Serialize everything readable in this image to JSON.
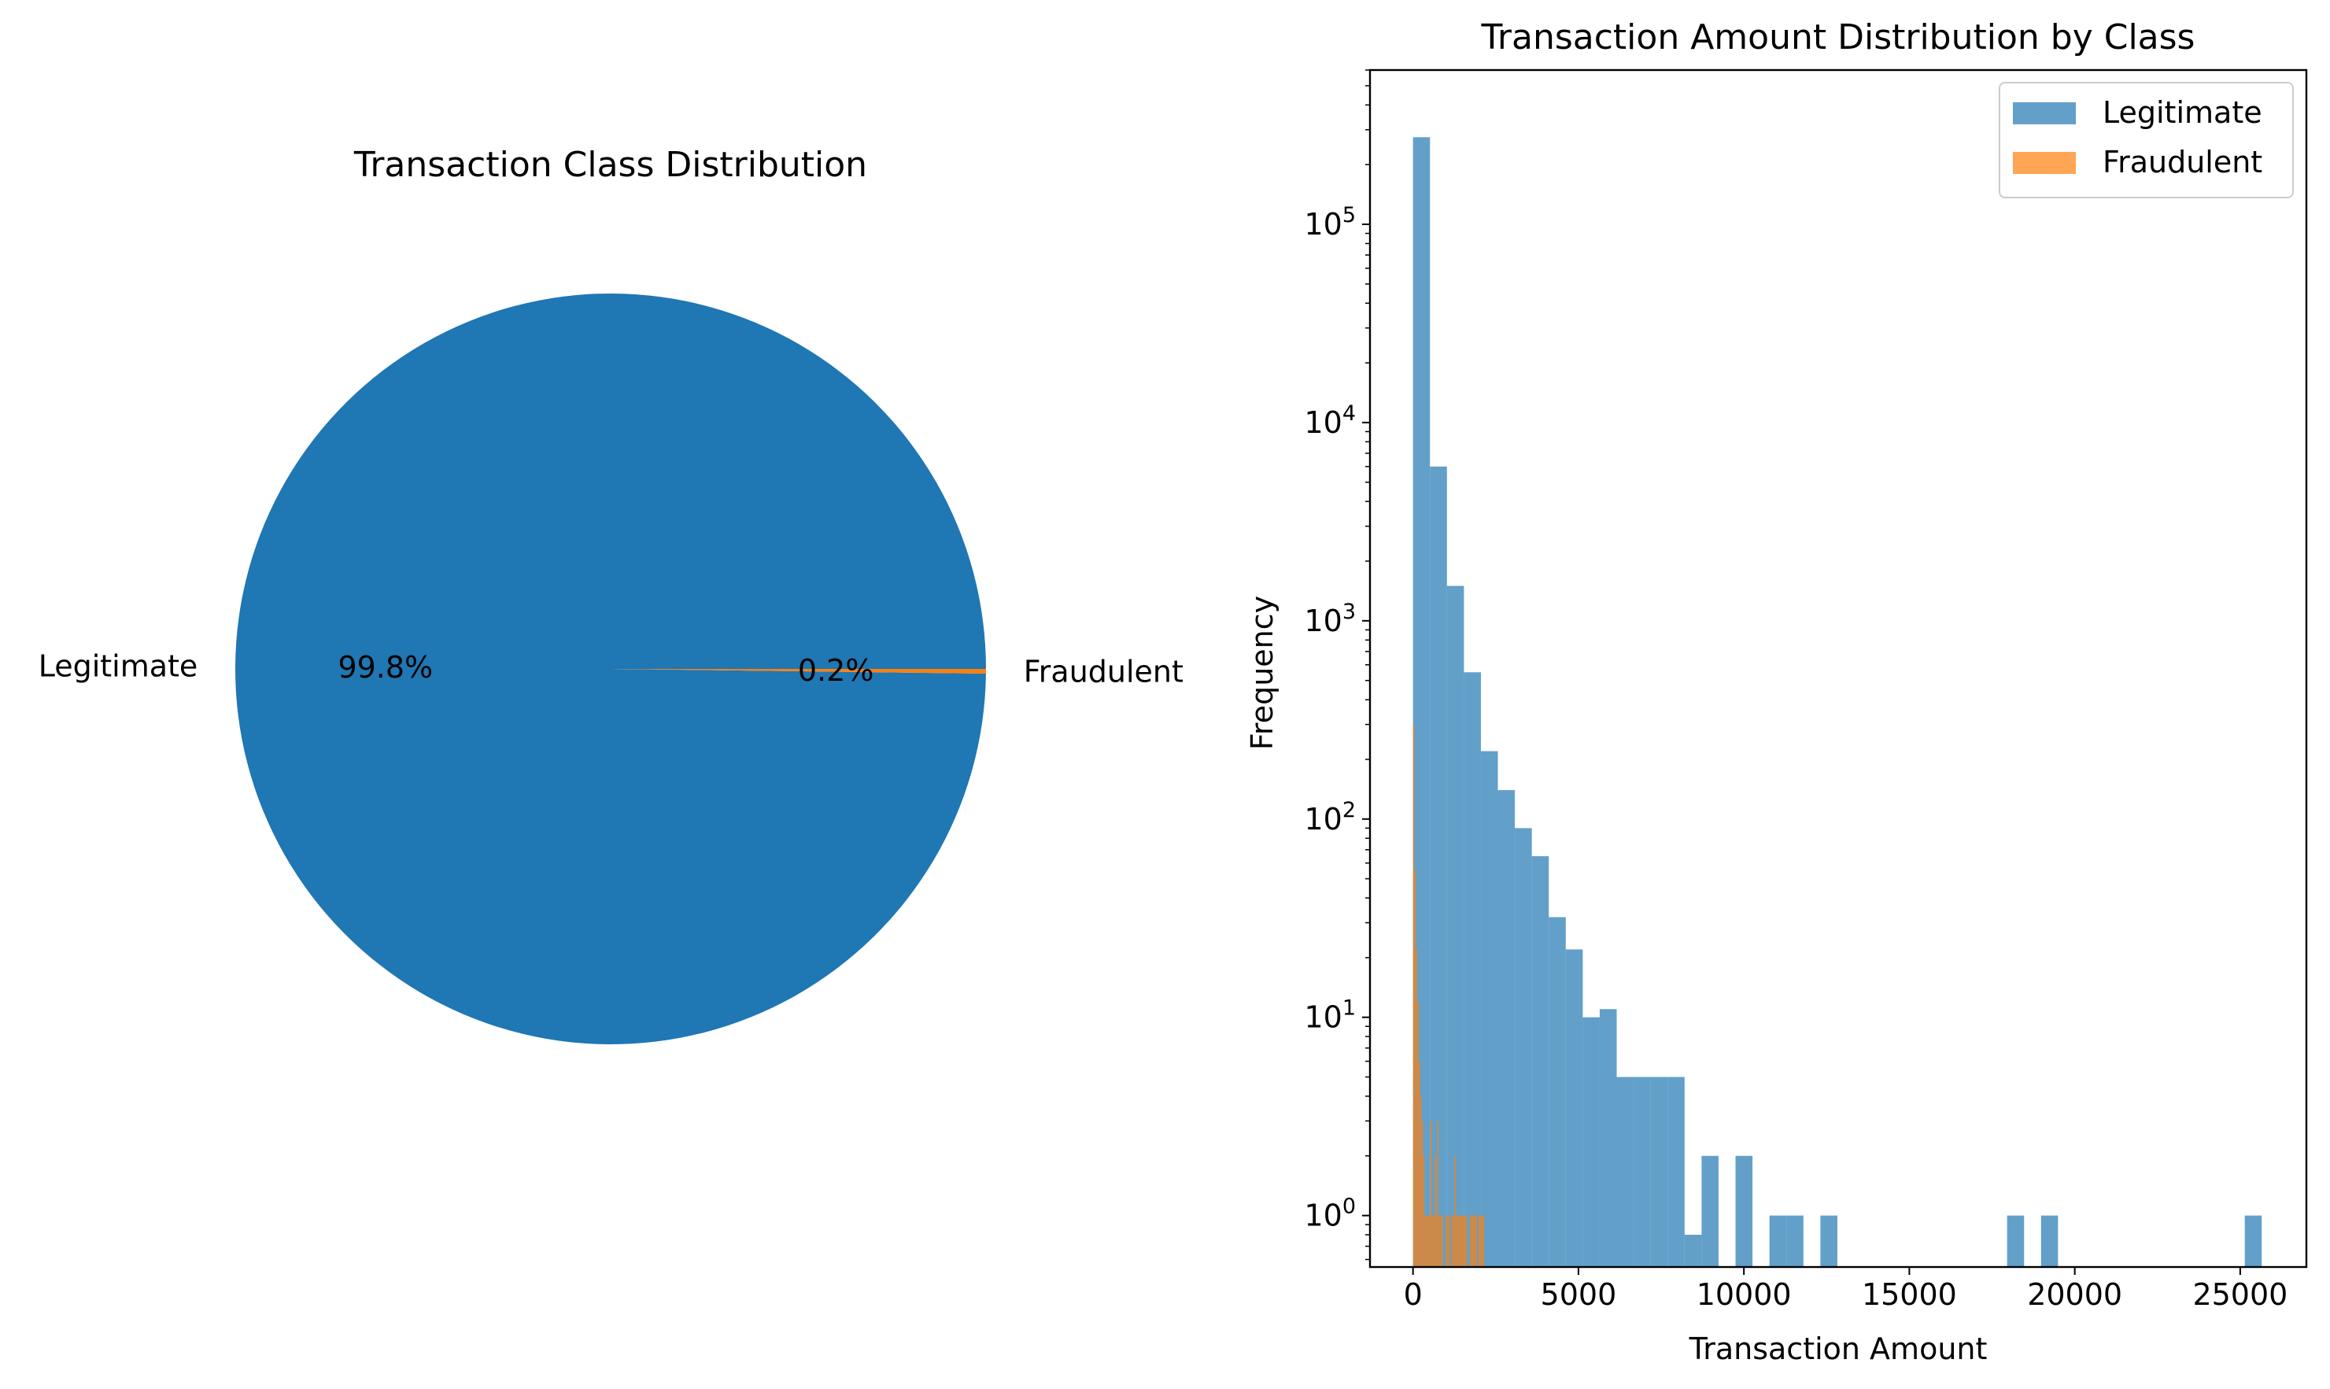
{
  "chart_data": [
    {
      "type": "pie",
      "title": "Transaction Class Distribution",
      "labels": [
        "Legitimate",
        "Fraudulent"
      ],
      "values": [
        99.8,
        0.2
      ],
      "pct_labels": [
        "99.8%",
        "0.2%"
      ],
      "colors": [
        "#1f77b4",
        "#ff7f0e"
      ]
    },
    {
      "type": "bar",
      "subtype": "histogram",
      "title": "Transaction Amount Distribution by Class",
      "xlabel": "Transaction Amount",
      "ylabel": "Frequency",
      "xlim": [
        -1300,
        27000
      ],
      "ylim": [
        0.55,
        600000
      ],
      "yscale": "log",
      "xticks": [
        0,
        5000,
        10000,
        15000,
        20000,
        25000
      ],
      "xtick_labels": [
        "0",
        "5000",
        "10000",
        "15000",
        "20000",
        "25000"
      ],
      "yticks": [
        1,
        10,
        100,
        1000,
        10000,
        100000
      ],
      "ytick_labels": [
        {
          "base": "10",
          "exp": "0"
        },
        {
          "base": "10",
          "exp": "1"
        },
        {
          "base": "10",
          "exp": "2"
        },
        {
          "base": "10",
          "exp": "3"
        },
        {
          "base": "10",
          "exp": "4"
        },
        {
          "base": "10",
          "exp": "5"
        }
      ],
      "legend": {
        "position": "upper right",
        "entries": [
          "Legitimate",
          "Fraudulent"
        ]
      },
      "series": [
        {
          "name": "Legitimate",
          "color": "#1f77b4",
          "alpha": 0.7,
          "bin_start": 0,
          "bin_width": 513,
          "values": [
            275000,
            6000,
            1500,
            550,
            220,
            140,
            90,
            65,
            32,
            22,
            10,
            11,
            5,
            5,
            5,
            5,
            0.8,
            2,
            0,
            2,
            0,
            1,
            1,
            0,
            1,
            0,
            0,
            0,
            0,
            0,
            0,
            0,
            0,
            0,
            0,
            1,
            0,
            1,
            0,
            0,
            0,
            0,
            0,
            0,
            0,
            0,
            0,
            0,
            0,
            1
          ]
        },
        {
          "name": "Fraudulent",
          "color": "#ff7f0e",
          "alpha": 0.7,
          "bin_start": 0,
          "bin_width": 43,
          "values": [
            300,
            55,
            22,
            12,
            6,
            4,
            3,
            2,
            1,
            1,
            1,
            1,
            3,
            1,
            1,
            2,
            1,
            3,
            1,
            1,
            1,
            0,
            0,
            1,
            1,
            1,
            0,
            1,
            1,
            2,
            1,
            1,
            1,
            1,
            1,
            1,
            1,
            1,
            0,
            0,
            1,
            1,
            1,
            1,
            1,
            0,
            1,
            1,
            1,
            1
          ]
        }
      ]
    }
  ]
}
